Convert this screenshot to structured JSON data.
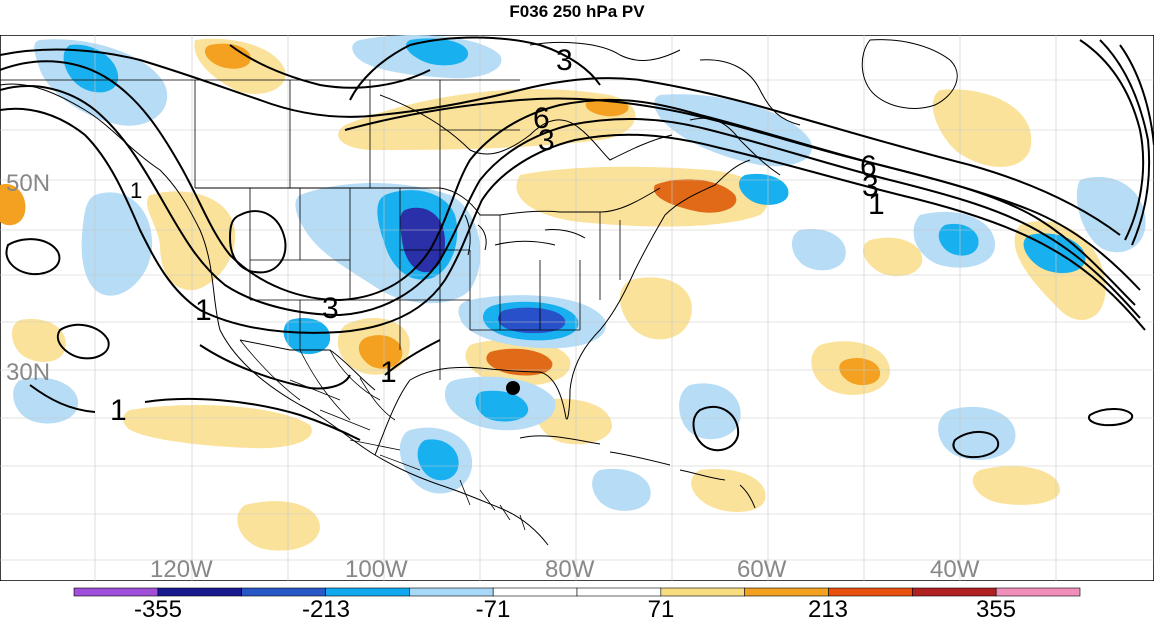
{
  "title": "F036 250 hPa PV",
  "lat_labels": [
    "50N",
    "30N"
  ],
  "lon_labels": [
    "120W",
    "100W",
    "80W",
    "60W",
    "40W"
  ],
  "contour_labels": [
    "3",
    "6",
    "3",
    "1",
    "6",
    "3",
    "1",
    "1",
    "3",
    "1",
    "1"
  ],
  "colorbar": {
    "labels": [
      "-355",
      "-213",
      "-71",
      "71",
      "213",
      "355"
    ],
    "colors": [
      "#a050d8",
      "#1a1a90",
      "#2858c8",
      "#10a8ee",
      "#a8d8f8",
      "#ffffff",
      "#ffffff",
      "#f8dc80",
      "#f4a020",
      "#e85010",
      "#b02020",
      "#f090b8"
    ]
  },
  "palette": {
    "pos_weak": "#fbe29a",
    "pos_mid": "#f4a020",
    "pos_strong": "#e06a18",
    "neg_weak": "#b6dcf6",
    "neg_mid": "#19b0ef",
    "neg_strong": "#2850c8",
    "neg_deep": "#2a30a8"
  },
  "marker": "storm-center-marker"
}
